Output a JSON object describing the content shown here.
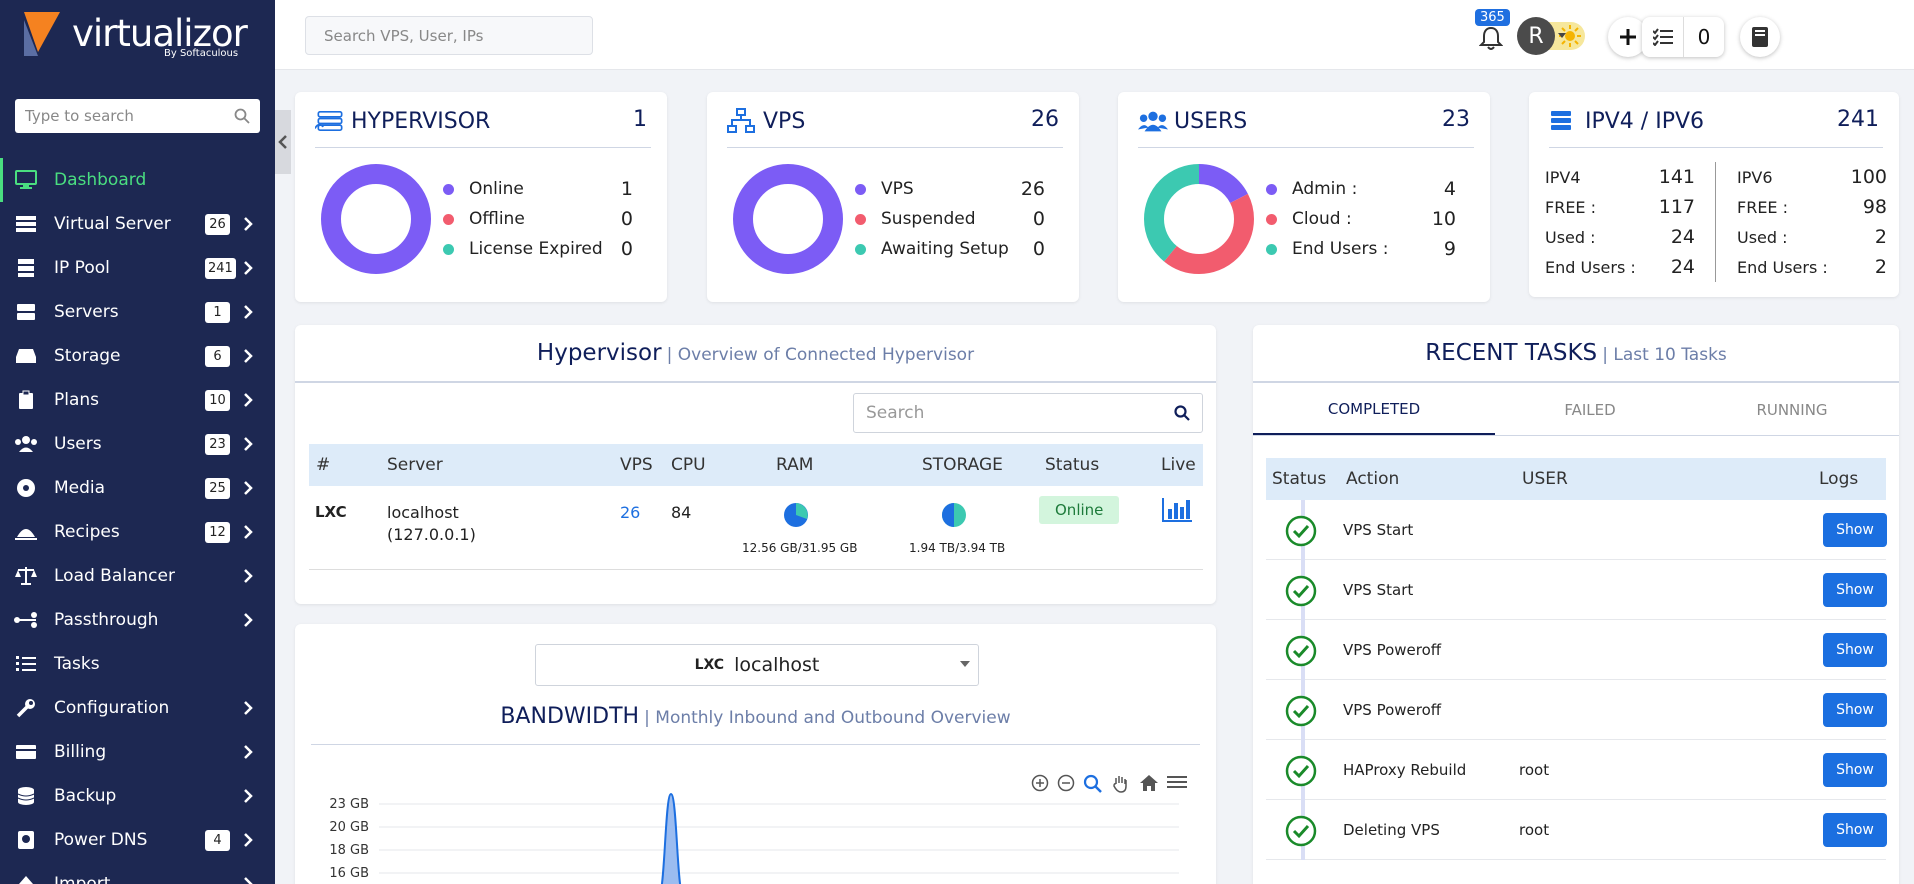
{
  "sidebar": {
    "brand": "virtualizor",
    "brand_by": "By Softaculous",
    "search_placeholder": "Type to search",
    "items": [
      {
        "label": "Dashboard",
        "badge": "",
        "chevron": false,
        "active": true
      },
      {
        "label": "Virtual Server",
        "badge": "26",
        "chevron": true
      },
      {
        "label": "IP Pool",
        "badge": "241",
        "chevron": true
      },
      {
        "label": "Servers",
        "badge": "1",
        "chevron": true
      },
      {
        "label": "Storage",
        "badge": "6",
        "chevron": true
      },
      {
        "label": "Plans",
        "badge": "10",
        "chevron": true
      },
      {
        "label": "Users",
        "badge": "23",
        "chevron": true
      },
      {
        "label": "Media",
        "badge": "25",
        "chevron": true
      },
      {
        "label": "Recipes",
        "badge": "12",
        "chevron": true
      },
      {
        "label": "Load Balancer",
        "badge": "",
        "chevron": true
      },
      {
        "label": "Passthrough",
        "badge": "",
        "chevron": true
      },
      {
        "label": "Tasks",
        "badge": "",
        "chevron": false
      },
      {
        "label": "Configuration",
        "badge": "",
        "chevron": true
      },
      {
        "label": "Billing",
        "badge": "",
        "chevron": true
      },
      {
        "label": "Backup",
        "badge": "",
        "chevron": true
      },
      {
        "label": "Power DNS",
        "badge": "4",
        "chevron": true
      },
      {
        "label": "Import",
        "badge": "",
        "chevron": true
      }
    ]
  },
  "header": {
    "search_placeholder": "Search VPS, User, IPs",
    "notification_count": "365",
    "tasks_count": "0",
    "avatar_initial": "R"
  },
  "cards": {
    "hypervisor": {
      "title": "HYPERVISOR",
      "total": "1",
      "legend": [
        {
          "label": "Online",
          "value": "1",
          "color": "#7c5cf5"
        },
        {
          "label": "Offline",
          "value": "0",
          "color": "#f25c6e"
        },
        {
          "label": "License Expired",
          "value": "0",
          "color": "#3cc9b1"
        }
      ]
    },
    "vps": {
      "title": "VPS",
      "total": "26",
      "legend": [
        {
          "label": "VPS",
          "value": "26",
          "color": "#7c5cf5"
        },
        {
          "label": "Suspended",
          "value": "0",
          "color": "#f25c6e"
        },
        {
          "label": "Awaiting Setup",
          "value": "0",
          "color": "#3cc9b1"
        }
      ]
    },
    "users": {
      "title": "USERS",
      "total": "23",
      "legend": [
        {
          "label": "Admin :",
          "value": "4",
          "color": "#7c5cf5"
        },
        {
          "label": "Cloud :",
          "value": "10",
          "color": "#f25c6e"
        },
        {
          "label": "End Users :",
          "value": "9",
          "color": "#3cc9b1"
        }
      ]
    },
    "ip": {
      "title": "IPV4 / IPV6",
      "total": "241",
      "ipv4": [
        {
          "label": "IPV4",
          "value": "141"
        },
        {
          "label": "FREE :",
          "value": "117"
        },
        {
          "label": "Used :",
          "value": "24"
        },
        {
          "label": "End Users :",
          "value": "24"
        }
      ],
      "ipv6": [
        {
          "label": "IPV6",
          "value": "100"
        },
        {
          "label": "FREE :",
          "value": "98"
        },
        {
          "label": "Used :",
          "value": "2"
        },
        {
          "label": "End Users :",
          "value": "2"
        }
      ]
    }
  },
  "hypervisor_panel": {
    "title": "Hypervisor",
    "subtitle": "| Overview of Connected Hypervisor",
    "search_placeholder": "Search",
    "columns": [
      "#",
      "Server",
      "VPS",
      "CPU",
      "RAM",
      "STORAGE",
      "Status",
      "Live"
    ],
    "row": {
      "type": "LXC",
      "server": "localhost",
      "ip": "(127.0.0.1)",
      "vps": "26",
      "cpu": "84",
      "ram": "12.56 GB/31.95 GB",
      "storage": "1.94 TB/3.94 TB",
      "status": "Online"
    }
  },
  "bandwidth": {
    "select_type": "LXC",
    "select_value": "localhost",
    "title": "BANDWIDTH",
    "subtitle": "| Monthly Inbound and Outbound Overview",
    "y_ticks": [
      "23 GB",
      "20 GB",
      "18 GB",
      "16 GB"
    ]
  },
  "recent_tasks": {
    "title": "RECENT TASKS",
    "subtitle": "| Last 10 Tasks",
    "tabs": [
      "COMPLETED",
      "FAILED",
      "RUNNING"
    ],
    "columns": [
      "Status",
      "Action",
      "USER",
      "Logs"
    ],
    "show_label": "Show",
    "rows": [
      {
        "action": "VPS Start",
        "user": ""
      },
      {
        "action": "VPS Start",
        "user": ""
      },
      {
        "action": "VPS Poweroff",
        "user": ""
      },
      {
        "action": "VPS Poweroff",
        "user": ""
      },
      {
        "action": "HAProxy Rebuild",
        "user": "root"
      },
      {
        "action": "Deleting VPS",
        "user": "root"
      }
    ]
  }
}
